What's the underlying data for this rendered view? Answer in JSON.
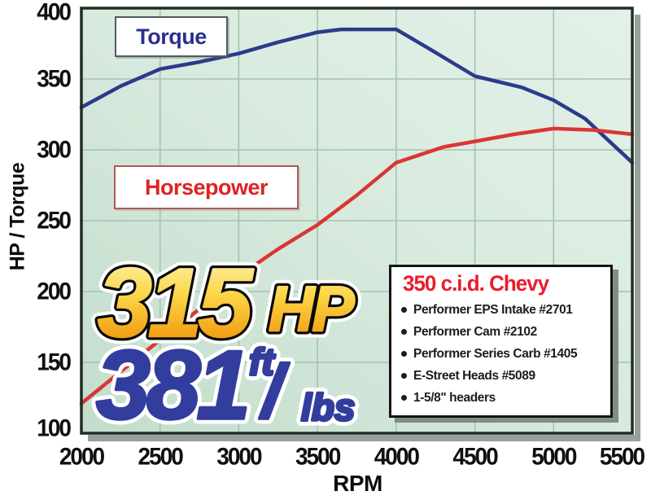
{
  "chart": {
    "y_axis_title": "HP / Torque",
    "x_axis_title": "RPM",
    "torque_label": "Torque",
    "horsepower_label": "Horsepower"
  },
  "callout": {
    "hp_value": "315",
    "hp_label": "HP",
    "torque_value": "381",
    "unit_ft": "ft",
    "unit_slash": "/",
    "unit_lbs": "lbs"
  },
  "legend": {
    "title": "350 c.i.d. Chevy",
    "items": [
      "Performer EPS Intake #2701",
      "Performer Cam #2102",
      "Performer Series Carb #1405",
      "E-Street Heads #5089",
      "1-5/8\" headers"
    ]
  },
  "colors": {
    "torque_line": "#2b3a8c",
    "horsepower_line": "#d93636",
    "torque_label_text": "#2b2f8e",
    "horsepower_label_text": "#e02222",
    "legend_title": "#ea1c2c",
    "callout_blue": "#333d9e",
    "gold_top": "#fdf8cd",
    "gold_mid": "#fcd84a",
    "gold_bottom": "#f0990c",
    "plot_bg_left": "#c3ddcc",
    "plot_bg_right": "#e3f1e8",
    "gridline": "#a6c2b1"
  },
  "chart_data": {
    "type": "line",
    "title": "",
    "xlabel": "RPM",
    "ylabel": "HP / Torque",
    "x_range": [
      2000,
      5500
    ],
    "y_range": [
      100,
      400
    ],
    "x_ticks": [
      2000,
      2500,
      3000,
      3500,
      4000,
      4500,
      5000,
      5500
    ],
    "y_ticks": [
      400,
      350,
      300,
      250,
      200,
      150,
      100
    ],
    "grid": true,
    "legend_position": "in-plot boxes",
    "annotations": {
      "peak_horsepower": "315 HP",
      "peak_torque": "381 ft/lbs",
      "engine": "350 c.i.d. Chevy"
    },
    "series": [
      {
        "name": "Torque",
        "color": "#2b3a8c",
        "unit": "ft/lbs",
        "points": [
          [
            2000,
            330
          ],
          [
            2250,
            345
          ],
          [
            2500,
            357
          ],
          [
            2750,
            362
          ],
          [
            3000,
            368
          ],
          [
            3250,
            376
          ],
          [
            3500,
            383
          ],
          [
            3650,
            385
          ],
          [
            4000,
            385
          ],
          [
            4200,
            372
          ],
          [
            4500,
            352
          ],
          [
            4800,
            344
          ],
          [
            5000,
            335
          ],
          [
            5200,
            322
          ],
          [
            5500,
            291
          ]
        ]
      },
      {
        "name": "Horsepower",
        "color": "#d93636",
        "unit": "HP",
        "points": [
          [
            2000,
            121
          ],
          [
            2400,
            157
          ],
          [
            2800,
            192
          ],
          [
            3000,
            211
          ],
          [
            3250,
            230
          ],
          [
            3500,
            247
          ],
          [
            3750,
            268
          ],
          [
            4000,
            291
          ],
          [
            4300,
            302
          ],
          [
            4500,
            306
          ],
          [
            4750,
            311
          ],
          [
            5000,
            315
          ],
          [
            5250,
            314
          ],
          [
            5500,
            311
          ]
        ]
      }
    ]
  }
}
